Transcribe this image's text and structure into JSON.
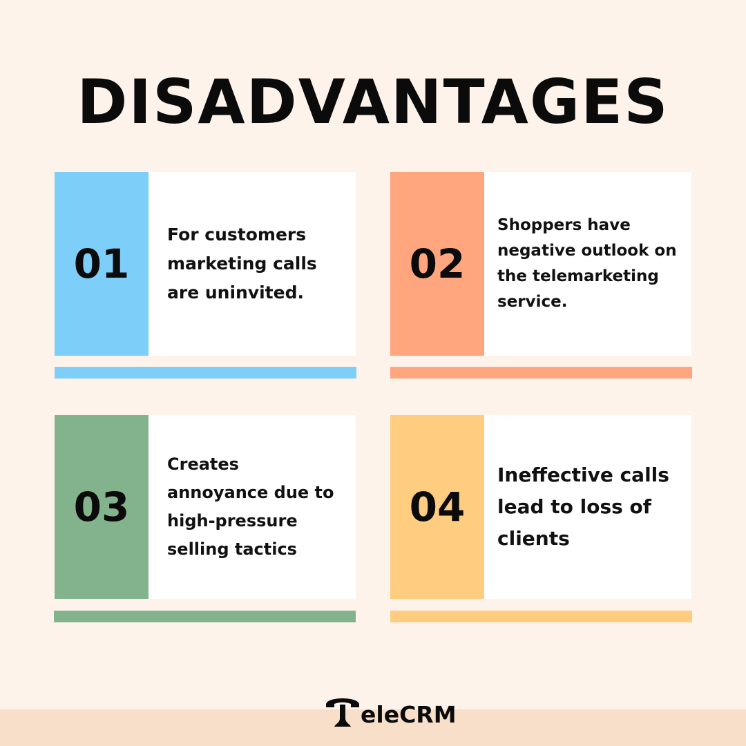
{
  "title": "DISADVANTAGES",
  "items": [
    {
      "number": "01",
      "text": "For customers marketing calls are uninvited.",
      "color": "#7dcff9"
    },
    {
      "number": "02",
      "text": "Shoppers have negative outlook on the telemarketing service.",
      "color": "#ffa67e"
    },
    {
      "number": "03",
      "text": "Creates annoyance due to high-pressure selling tactics",
      "color": "#83b38d"
    },
    {
      "number": "04",
      "text": "Ineffective calls lead to loss of clients",
      "color": "#ffcd80"
    }
  ],
  "footer": {
    "logo_text": "TeleCRM",
    "logo_text_visible": "eleCRM",
    "logo_icon": "telephone-icon"
  }
}
